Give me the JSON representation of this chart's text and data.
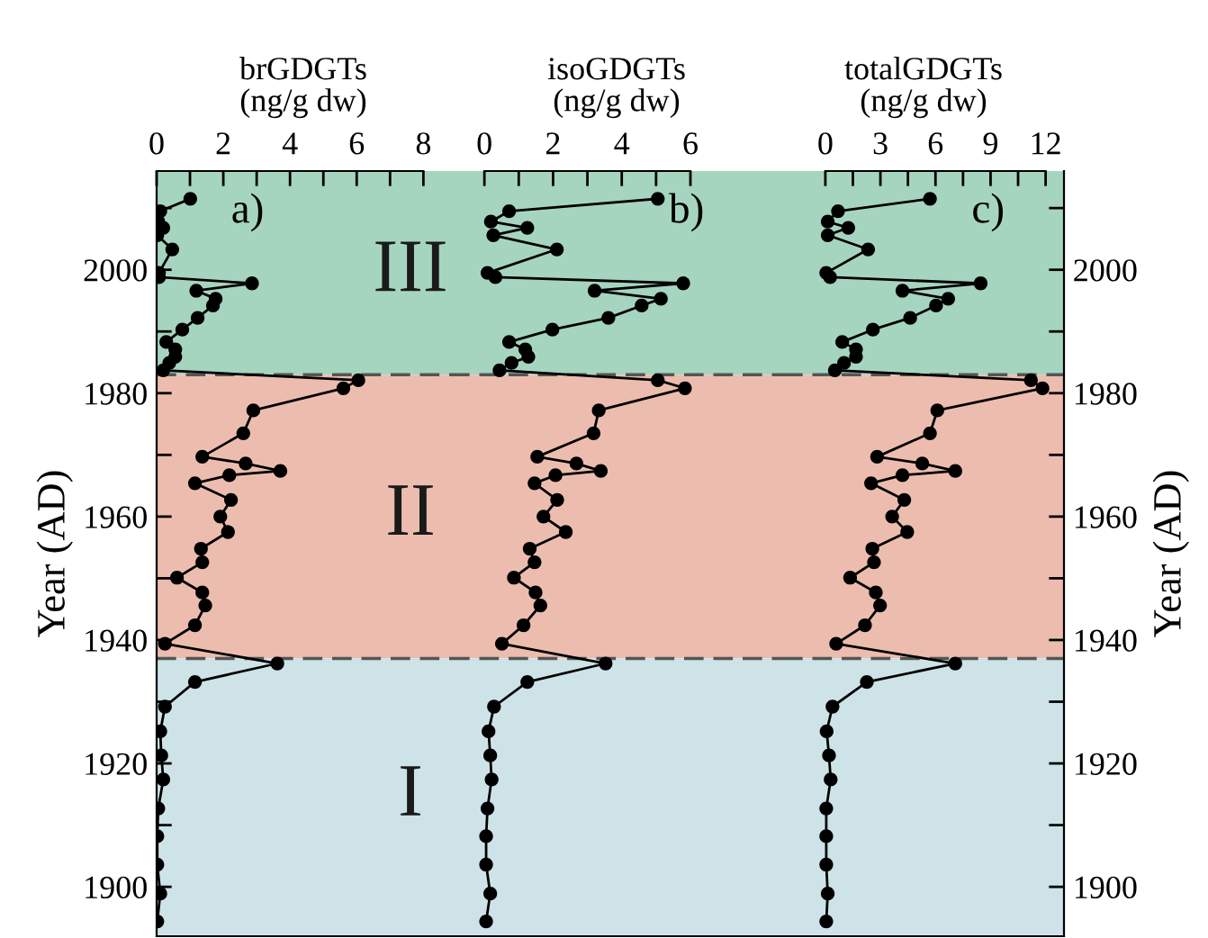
{
  "chart_data": [
    {
      "type": "line",
      "title": "brGDGTs\n(ng/g dw)",
      "ylabel": "Year (AD)",
      "annotations": [
        "a)"
      ],
      "xlim": [
        0,
        8.8
      ],
      "xticks": [
        0,
        {
          "value": 1,
          "label": null
        },
        2,
        {
          "value": 3,
          "label": null
        },
        4,
        {
          "value": 5,
          "label": null
        },
        6,
        {
          "value": 7,
          "label": null
        },
        8
      ],
      "ylim": [
        1892,
        2016
      ],
      "yticks": [
        1900,
        {
          "value": 1910,
          "label": null
        },
        1920,
        {
          "value": 1930,
          "label": null
        },
        1940,
        {
          "value": 1950,
          "label": null
        },
        1960,
        {
          "value": 1970,
          "label": null
        },
        1980,
        {
          "value": 1990,
          "label": null
        },
        2000,
        {
          "value": 2010,
          "label": null
        }
      ],
      "marker": "circle",
      "line_style": "solid",
      "series": [
        {
          "color": "#000000",
          "x": [
            1.01,
            0.11,
            0.05,
            0.2,
            0.02,
            0.47,
            0.07,
            0.07,
            2.86,
            1.19,
            1.77,
            1.69,
            1.23,
            0.77,
            0.29,
            0.56,
            0.56,
            0.38,
            0.2,
            6.05,
            5.6,
            2.9,
            2.6,
            1.37,
            2.67,
            3.71,
            2.18,
            1.15,
            2.23,
            1.91,
            2.14,
            1.33,
            1.37,
            0.61,
            1.37,
            1.46,
            1.15,
            0.25,
            3.62,
            1.15,
            0.25,
            0.11,
            0.14,
            0.2,
            0.05,
            0.02,
            0.02,
            0.11,
            0.02
          ],
          "values": [
            2011.5,
            2009.5,
            2007.8,
            2006.8,
            2005.6,
            2003.3,
            1999.5,
            1998.8,
            1997.8,
            1996.6,
            1995.3,
            1994.2,
            1992.2,
            1990.3,
            1988.3,
            1987.1,
            1985.9,
            1984.9,
            1983.7,
            1982.1,
            1980.8,
            1977.2,
            1973.5,
            1969.7,
            1968.6,
            1967.4,
            1966.7,
            1965.4,
            1962.7,
            1960.0,
            1957.5,
            1954.8,
            1952.6,
            1950.1,
            1947.7,
            1945.6,
            1942.4,
            1939.4,
            1936.2,
            1933.2,
            1929.2,
            1925.2,
            1921.3,
            1917.4,
            1912.7,
            1908.2,
            1903.6,
            1898.9,
            1894.4
          ]
        }
      ],
      "bands": [
        {
          "axis": "y",
          "from": 1983,
          "to": 2016,
          "label": "III",
          "color": "#a6d5bf"
        },
        {
          "axis": "y",
          "from": 1937,
          "to": 1983,
          "label": "II",
          "color": "#ecbdae"
        },
        {
          "axis": "y",
          "from": 1892,
          "to": 1937,
          "label": "I",
          "color": "#cde3e8"
        }
      ],
      "ref_lines": [
        {
          "axis": "y",
          "value": 1983,
          "color": "#555555",
          "line_style": "dashed"
        },
        {
          "axis": "y",
          "value": 1937,
          "color": "#555555",
          "line_style": "dashed"
        }
      ],
      "tick_labels": "xy"
    },
    {
      "type": "line",
      "title": "isoGDGTs\n(ng/g dw)",
      "annotations": [
        "b)"
      ],
      "xlim": [
        -1.0,
        8.7
      ],
      "xticks": [
        0,
        {
          "value": 1,
          "label": null
        },
        2,
        {
          "value": 3,
          "label": null
        },
        4,
        {
          "value": 5,
          "label": null
        },
        6
      ],
      "ylim": [
        1892,
        2016
      ],
      "yticks": [
        1900,
        1920,
        1940,
        1960,
        1980,
        2000
      ],
      "marker": "circle",
      "line_style": "solid",
      "series": [
        {
          "color": "#000000",
          "x": [
            5.05,
            0.72,
            0.19,
            1.25,
            0.26,
            2.11,
            0.09,
            0.32,
            5.79,
            3.21,
            5.14,
            4.58,
            3.61,
            1.98,
            0.72,
            1.19,
            1.28,
            0.79,
            0.44,
            5.05,
            5.84,
            3.33,
            3.18,
            1.54,
            2.68,
            3.39,
            2.07,
            1.46,
            2.12,
            1.72,
            2.37,
            1.32,
            1.46,
            0.86,
            1.49,
            1.63,
            1.14,
            0.51,
            3.53,
            1.25,
            0.28,
            0.12,
            0.17,
            0.21,
            0.09,
            0.05,
            0.05,
            0.17,
            0.05
          ],
          "values": [
            2011.5,
            2009.5,
            2007.8,
            2006.8,
            2005.6,
            2003.3,
            1999.5,
            1998.8,
            1997.8,
            1996.6,
            1995.3,
            1994.2,
            1992.2,
            1990.3,
            1988.3,
            1987.1,
            1985.9,
            1984.9,
            1983.7,
            1982.1,
            1980.8,
            1977.2,
            1973.5,
            1969.7,
            1968.6,
            1967.4,
            1966.7,
            1965.4,
            1962.7,
            1960.0,
            1957.5,
            1954.8,
            1952.6,
            1950.1,
            1947.7,
            1945.6,
            1942.4,
            1939.4,
            1936.2,
            1933.2,
            1929.2,
            1925.2,
            1921.3,
            1917.4,
            1912.7,
            1908.2,
            1903.6,
            1898.9,
            1894.4
          ]
        }
      ],
      "bands": [
        {
          "axis": "y",
          "from": 1983,
          "to": 2016,
          "color": "#a6d5bf"
        },
        {
          "axis": "y",
          "from": 1937,
          "to": 1983,
          "color": "#ecbdae"
        },
        {
          "axis": "y",
          "from": 1892,
          "to": 1937,
          "color": "#cde3e8"
        }
      ],
      "ref_lines": [
        {
          "axis": "y",
          "value": 1983,
          "color": "#555555",
          "line_style": "dashed"
        },
        {
          "axis": "y",
          "value": 1937,
          "color": "#555555",
          "line_style": "dashed"
        }
      ],
      "tick_labels": "x"
    },
    {
      "type": "line",
      "title": "totalGDGTs\n(ng/g dw)",
      "ylabel": "Year (AD)",
      "annotations": [
        "c)"
      ],
      "xlim": [
        -2.3,
        13
      ],
      "xticks": [
        0,
        {
          "value": 1.5,
          "label": null
        },
        3,
        {
          "value": 4.5,
          "label": null
        },
        6,
        {
          "value": 7.5,
          "label": null
        },
        9,
        {
          "value": 10.5,
          "label": null
        },
        12
      ],
      "ylim": [
        1892,
        2016
      ],
      "yticks": [
        1900,
        {
          "value": 1910,
          "label": null
        },
        1920,
        {
          "value": 1930,
          "label": null
        },
        1940,
        {
          "value": 1950,
          "label": null
        },
        1960,
        {
          "value": 1970,
          "label": null
        },
        1980,
        {
          "value": 1990,
          "label": null
        },
        2000,
        {
          "value": 2010,
          "label": null
        }
      ],
      "marker": "circle",
      "line_style": "solid",
      "series": [
        {
          "color": "#000000",
          "x": [
            5.7,
            0.69,
            0.13,
            1.25,
            0.13,
            2.33,
            0.05,
            0.26,
            8.46,
            4.2,
            6.69,
            6.03,
            4.62,
            2.59,
            0.92,
            1.67,
            1.67,
            1.02,
            0.52,
            11.2,
            11.83,
            6.1,
            5.7,
            2.82,
            5.28,
            7.08,
            4.2,
            2.49,
            4.3,
            3.64,
            4.46,
            2.56,
            2.65,
            1.35,
            2.75,
            2.98,
            2.16,
            0.59,
            7.08,
            2.26,
            0.39,
            0.07,
            0.2,
            0.29,
            0.05,
            0.05,
            0.05,
            0.13,
            0.05
          ],
          "values": [
            2011.5,
            2009.5,
            2007.8,
            2006.8,
            2005.6,
            2003.3,
            1999.5,
            1998.8,
            1997.8,
            1996.6,
            1995.3,
            1994.2,
            1992.2,
            1990.3,
            1988.3,
            1987.1,
            1985.9,
            1984.9,
            1983.7,
            1982.1,
            1980.8,
            1977.2,
            1973.5,
            1969.7,
            1968.6,
            1967.4,
            1966.7,
            1965.4,
            1962.7,
            1960.0,
            1957.5,
            1954.8,
            1952.6,
            1950.1,
            1947.7,
            1945.6,
            1942.4,
            1939.4,
            1936.2,
            1933.2,
            1929.2,
            1925.2,
            1921.3,
            1917.4,
            1912.7,
            1908.2,
            1903.6,
            1898.9,
            1894.4
          ]
        }
      ],
      "bands": [
        {
          "axis": "y",
          "from": 1983,
          "to": 2016,
          "color": "#a6d5bf"
        },
        {
          "axis": "y",
          "from": 1937,
          "to": 1983,
          "color": "#ecbdae"
        },
        {
          "axis": "y",
          "from": 1892,
          "to": 1937,
          "color": "#cde3e8"
        }
      ],
      "ref_lines": [
        {
          "axis": "y",
          "value": 1983,
          "color": "#555555",
          "line_style": "dashed"
        },
        {
          "axis": "y",
          "value": 1937,
          "color": "#555555",
          "line_style": "dashed"
        }
      ],
      "tick_labels": "xy"
    }
  ]
}
